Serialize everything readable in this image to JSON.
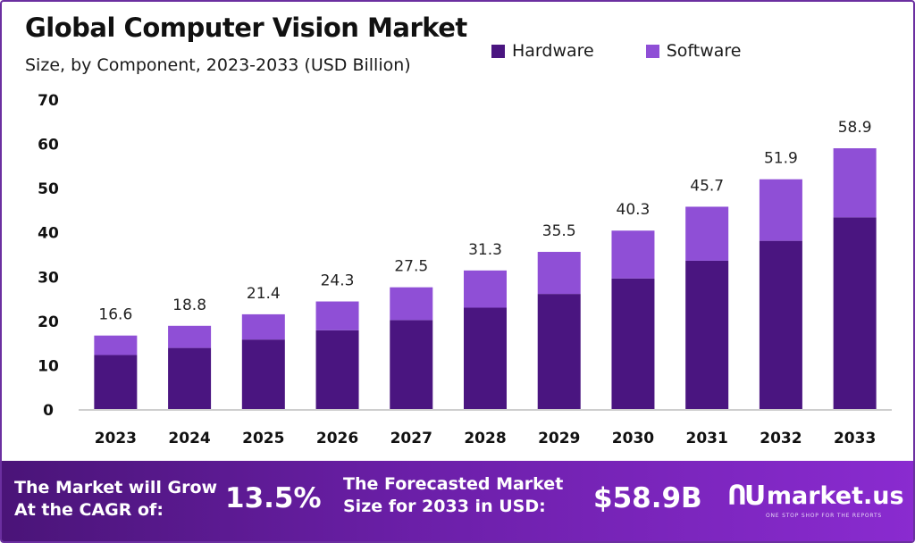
{
  "chart_data": {
    "type": "bar",
    "stacked": true,
    "title": "Global Computer Vision Market",
    "subtitle": "Size, by Component, 2023-2033 (USD Billion)",
    "categories": [
      "2023",
      "2024",
      "2025",
      "2026",
      "2027",
      "2028",
      "2029",
      "2030",
      "2031",
      "2032",
      "2033"
    ],
    "series": [
      {
        "name": "Hardware",
        "color": "#4a1580",
        "values": [
          12.2,
          13.8,
          15.7,
          17.8,
          20.1,
          22.9,
          26.0,
          29.5,
          33.5,
          38.0,
          43.3
        ]
      },
      {
        "name": "Software",
        "color": "#8f4fd6",
        "values": [
          4.4,
          5.0,
          5.7,
          6.5,
          7.4,
          8.4,
          9.5,
          10.8,
          12.2,
          13.9,
          15.6
        ]
      }
    ],
    "totals": [
      "16.6",
      "18.8",
      "21.4",
      "24.3",
      "27.5",
      "31.3",
      "35.5",
      "40.3",
      "45.7",
      "51.9",
      "58.9"
    ],
    "yticks": [
      "0",
      "10",
      "20",
      "30",
      "40",
      "50",
      "60",
      "70"
    ],
    "ylim": [
      0,
      70
    ],
    "legend_position": "top-right",
    "grid": false
  },
  "banner": {
    "cagr_line1": "The Market will Grow",
    "cagr_line2": "At the CAGR of:",
    "cagr_value": "13.5%",
    "forecast_line1": "The Forecasted Market",
    "forecast_line2": "Size for 2033 in USD:",
    "forecast_value": "$58.9B",
    "logo_icon": "ՈՍ",
    "logo_name": "market.us",
    "logo_tagline": "ONE STOP SHOP FOR THE REPORTS"
  }
}
